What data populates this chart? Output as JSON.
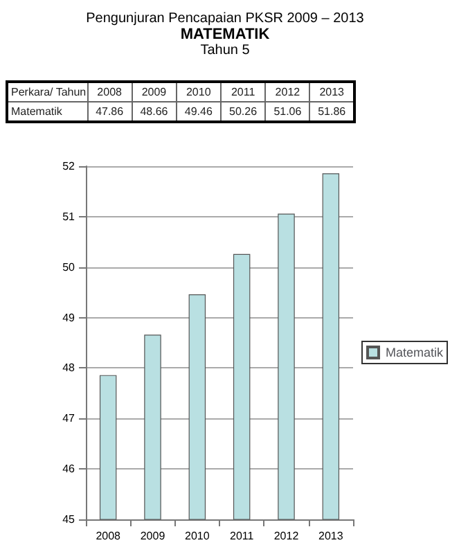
{
  "chart_data": {
    "type": "bar",
    "title": "Pengunjuran Pencapaian PKSR 2009 – 2013",
    "subtitle": "MATEMATIK",
    "annotations": [
      "Tahun 5",
      "Perkara/ Tahun"
    ],
    "categories": [
      "2008",
      "2009",
      "2010",
      "2011",
      "2012",
      "2013"
    ],
    "series": [
      {
        "name": "Matematik",
        "color": "#b9e0e2",
        "values": [
          47.86,
          48.66,
          49.46,
          50.26,
          51.06,
          51.86
        ]
      }
    ],
    "ylim": [
      45,
      52
    ],
    "yticks": [
      45,
      46,
      47,
      48,
      49,
      50,
      51,
      52
    ],
    "data_labels": true,
    "grid": "y",
    "legend": "right"
  }
}
